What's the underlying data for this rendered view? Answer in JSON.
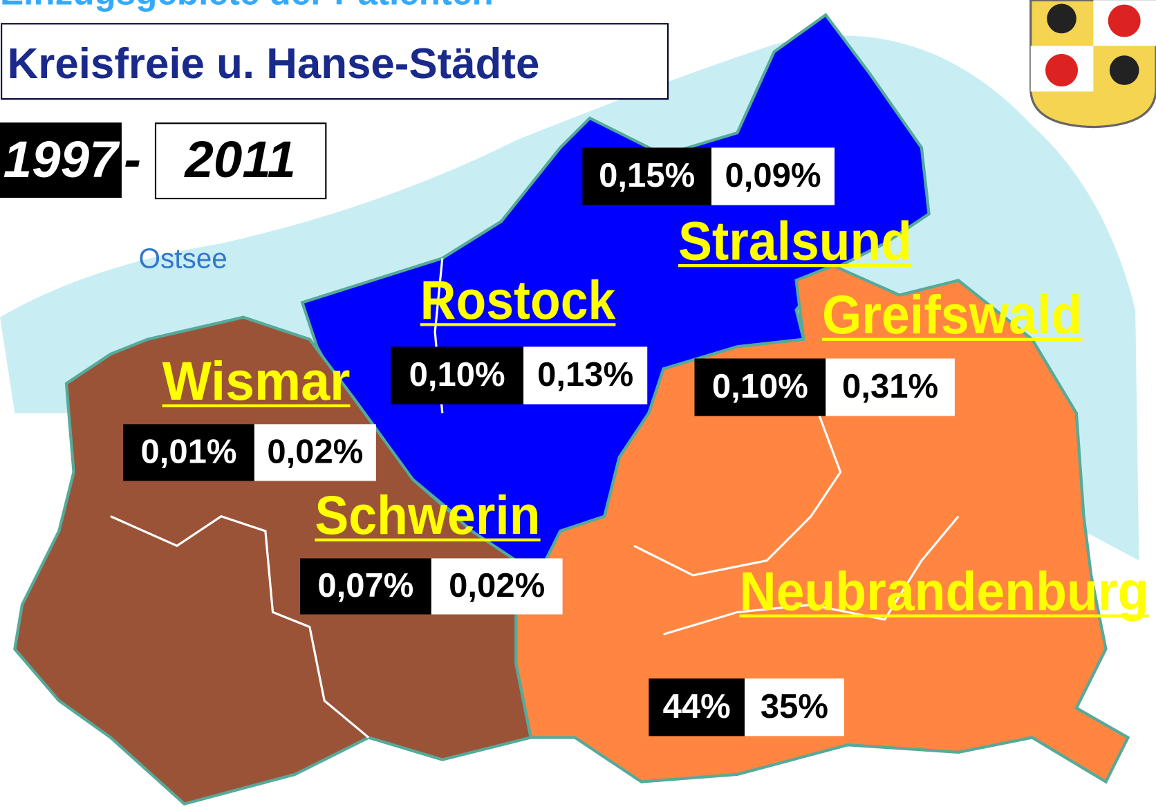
{
  "header": {
    "title": "Einzugsgebiete der Patienten",
    "subtitle": "Kreisfreie u. Hanse-Städte",
    "year_from": "1997",
    "year_separator": "-",
    "year_to": "2011"
  },
  "sea_label": "Ostsee",
  "regions": [
    {
      "name": "Stralsund",
      "value_1997": "0,15%",
      "value_2011": "0,09%"
    },
    {
      "name": "Rostock",
      "value_1997": "0,10%",
      "value_2011": "0,13%"
    },
    {
      "name": "Greifswald",
      "value_1997": "0,10%",
      "value_2011": "0,31%"
    },
    {
      "name": "Wismar",
      "value_1997": "0,01%",
      "value_2011": "0,02%"
    },
    {
      "name": "Schwerin",
      "value_1997": "0,07%",
      "value_2011": "0,02%"
    },
    {
      "name": "Neubrandenburg",
      "value_1997": "44%",
      "value_2011": "35%"
    }
  ]
}
